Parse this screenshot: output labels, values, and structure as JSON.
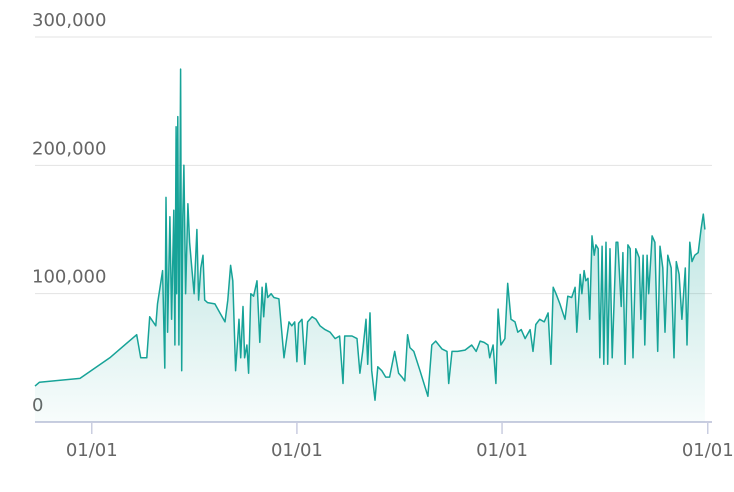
{
  "chart_data": {
    "type": "area",
    "color": "#17a398",
    "grid": true,
    "xlim": [
      -101,
      1100
    ],
    "xticks": [
      {
        "value": 0,
        "label": "01/01"
      },
      {
        "value": 365,
        "label": "01/01"
      },
      {
        "value": 730,
        "label": "01/01"
      },
      {
        "value": 1096,
        "label": "01/01"
      }
    ],
    "ylim": [
      0,
      300000
    ],
    "yticks": [
      0,
      {
        "value": 100000,
        "label": "100,000"
      },
      {
        "value": 200000,
        "label": "200,000"
      },
      {
        "value": 300000,
        "label": "300,000"
      }
    ],
    "x": [
      -101,
      -93,
      -21,
      32,
      80,
      87,
      98,
      103,
      114,
      117,
      126,
      130,
      132,
      135,
      139,
      142,
      146,
      148,
      150,
      151,
      153,
      155,
      157,
      158,
      160,
      162,
      164,
      167,
      171,
      174,
      178,
      182,
      187,
      190,
      194,
      198,
      201,
      206,
      219,
      228,
      237,
      242,
      247,
      251,
      256,
      262,
      265,
      269,
      272,
      276,
      279,
      283,
      288,
      294,
      299,
      303,
      306,
      310,
      313,
      319,
      324,
      333,
      342,
      351,
      356,
      361,
      365,
      368,
      374,
      379,
      384,
      392,
      399,
      406,
      415,
      424,
      433,
      441,
      447,
      450,
      456,
      463,
      472,
      477,
      482,
      488,
      491,
      495,
      498,
      504,
      509,
      516,
      523,
      530,
      539,
      546,
      552,
      557,
      562,
      566,
      573,
      584,
      598,
      605,
      612,
      623,
      632,
      635,
      641,
      651,
      664,
      676,
      684,
      691,
      698,
      705,
      708,
      714,
      719,
      723,
      728,
      735,
      740,
      746,
      753,
      758,
      764,
      771,
      780,
      785,
      790,
      797,
      805,
      812,
      817,
      821,
      826,
      833,
      842,
      847,
      854,
      860,
      863,
      869,
      872,
      876,
      879,
      883,
      886,
      890,
      894,
      897,
      901,
      904,
      908,
      911,
      915,
      918,
      922,
      926,
      933,
      936,
      942,
      945,
      949,
      954,
      958,
      963,
      968,
      974,
      977,
      981,
      984,
      988,
      991,
      997,
      1002,
      1007,
      1011,
      1016,
      1020,
      1025,
      1031,
      1036,
      1040,
      1045,
      1050,
      1056,
      1059,
      1064,
      1068,
      1073,
      1079,
      1084,
      1088,
      1091
    ],
    "values": [
      28000,
      31000,
      34000,
      50000,
      68000,
      50000,
      50000,
      82000,
      75000,
      92000,
      118000,
      42000,
      175000,
      70000,
      160000,
      80000,
      165000,
      60000,
      230000,
      100000,
      238000,
      60000,
      190000,
      275000,
      40000,
      160000,
      200000,
      100000,
      170000,
      140000,
      120000,
      100000,
      150000,
      95000,
      120000,
      130000,
      95000,
      93000,
      92000,
      85000,
      78000,
      95000,
      122000,
      110000,
      40000,
      80000,
      50000,
      90000,
      50000,
      60000,
      38000,
      100000,
      98000,
      110000,
      62000,
      105000,
      82000,
      108000,
      97000,
      100000,
      97000,
      96000,
      50000,
      78000,
      75000,
      78000,
      47000,
      77000,
      80000,
      45000,
      78000,
      82000,
      80000,
      75000,
      72000,
      70000,
      65000,
      67000,
      30000,
      67000,
      67000,
      67000,
      65000,
      38000,
      55000,
      80000,
      45000,
      85000,
      40000,
      17000,
      43000,
      40000,
      35000,
      35000,
      55000,
      38000,
      35000,
      32000,
      68000,
      58000,
      55000,
      40000,
      20000,
      60000,
      63000,
      57000,
      55000,
      30000,
      55000,
      55000,
      56000,
      60000,
      55000,
      63000,
      62000,
      60000,
      50000,
      60000,
      30000,
      88000,
      60000,
      65000,
      108000,
      80000,
      78000,
      70000,
      72000,
      65000,
      72000,
      55000,
      76000,
      80000,
      78000,
      85000,
      45000,
      105000,
      100000,
      92000,
      80000,
      98000,
      97000,
      105000,
      70000,
      115000,
      100000,
      118000,
      110000,
      112000,
      80000,
      145000,
      130000,
      138000,
      135000,
      50000,
      137000,
      45000,
      140000,
      45000,
      135000,
      50000,
      140000,
      140000,
      90000,
      132000,
      45000,
      138000,
      135000,
      50000,
      135000,
      128000,
      80000,
      130000,
      60000,
      130000,
      100000,
      145000,
      140000,
      55000,
      137000,
      120000,
      70000,
      130000,
      120000,
      50000,
      125000,
      115000,
      80000,
      120000,
      60000,
      140000,
      125000,
      130000,
      132000,
      150000,
      162000,
      150000
    ]
  }
}
